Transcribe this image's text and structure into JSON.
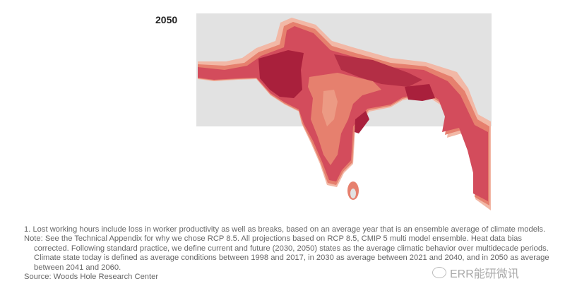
{
  "map": {
    "year_label": "2050",
    "colors": {
      "background": "#e2e2e2",
      "light": "#f2b8a6",
      "mid_light": "#e6806e",
      "mid": "#d34c5c",
      "dark": "#a9203c"
    }
  },
  "notes": {
    "footnote_1": "1. Lost working hours include loss in worker productivity as well as breaks, based on an average year that is an ensemble average of climate models.",
    "note_line1": "Note: See the Technical Appendix for why we chose RCP 8.5. All projections based on RCP 8.5, CMIP 5 multi model ensemble. Heat data bias",
    "note_rest": "corrected. Following standard practice, we define current and future (2030, 2050) states as the average climatic behavior over multidecade periods. Climate state today is defined as average conditions between 1998 and 2017, in 2030 as average between 2021 and 2040, and in 2050 as average between 2041 and 2060.",
    "source": "Source: Woods Hole Research Center"
  },
  "watermark": {
    "text": "ERR能研微讯"
  }
}
